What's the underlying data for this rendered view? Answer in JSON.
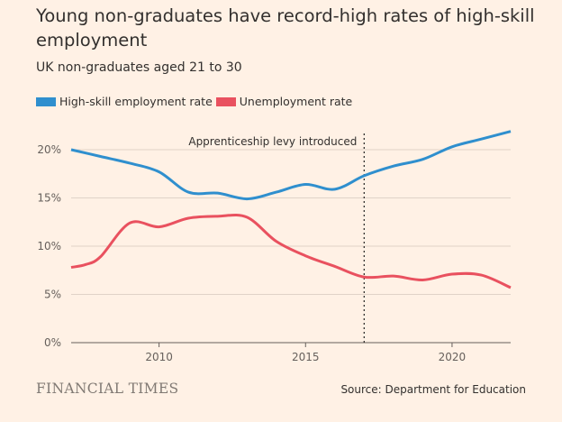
{
  "title": "Young non-graduates have record-high rates of high-skill employment",
  "subtitle": "UK non-graduates aged 21 to 30",
  "logo": "FINANCIAL TIMES",
  "source": "Source: Department for Education",
  "chart_data": {
    "type": "line",
    "xlim": [
      2007,
      2022
    ],
    "ylim": [
      0,
      20
    ],
    "yticks": [
      0,
      5,
      10,
      15,
      20
    ],
    "ytick_labels": [
      "0%",
      "5%",
      "10%",
      "15%",
      "20%"
    ],
    "xticks": [
      2010,
      2015,
      2020
    ],
    "xtick_labels": [
      "2010",
      "2015",
      "2020"
    ],
    "grid": true,
    "legend": "top-left",
    "annotation": {
      "x": 2017,
      "label": "Apprenticeship levy introduced"
    },
    "series": [
      {
        "name": "High-skill employment rate",
        "color": "#2f8fce",
        "x": [
          2007,
          2008,
          2009,
          2010,
          2011,
          2012,
          2013,
          2014,
          2015,
          2016,
          2017,
          2018,
          2019,
          2020,
          2021,
          2022
        ],
        "values": [
          20.0,
          19.3,
          18.6,
          17.7,
          15.6,
          15.5,
          14.9,
          15.6,
          16.4,
          15.9,
          17.3,
          18.3,
          19.0,
          20.3,
          21.1,
          21.9
        ]
      },
      {
        "name": "Unemployment rate",
        "color": "#e9515f",
        "x": [
          2007,
          2007.5,
          2008,
          2009,
          2010,
          2011,
          2012,
          2013,
          2014,
          2015,
          2016,
          2017,
          2018,
          2019,
          2020,
          2021,
          2022
        ],
        "values": [
          7.8,
          8.1,
          8.9,
          12.4,
          12.0,
          12.9,
          13.1,
          13.0,
          10.5,
          9.0,
          7.9,
          6.8,
          6.9,
          6.5,
          7.1,
          7.0,
          5.7
        ]
      }
    ]
  }
}
